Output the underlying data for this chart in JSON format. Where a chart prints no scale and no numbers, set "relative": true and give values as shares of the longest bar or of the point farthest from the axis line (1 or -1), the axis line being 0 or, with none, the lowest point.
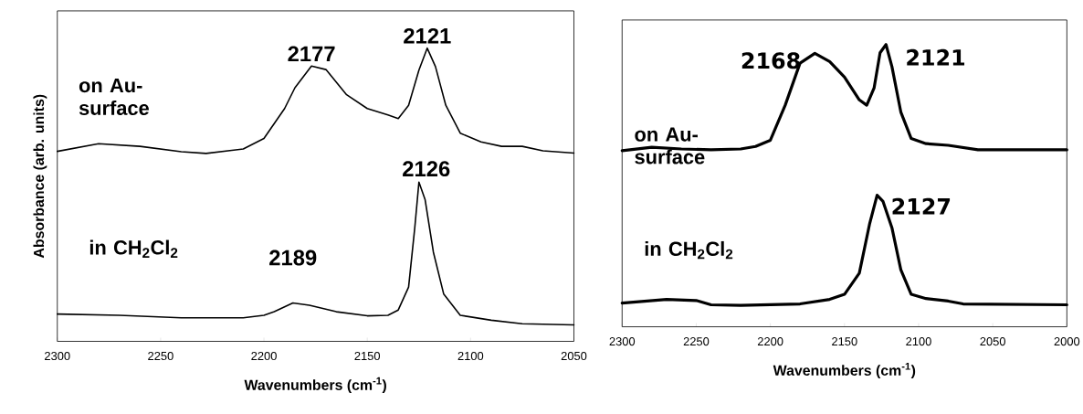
{
  "chart_data": [
    {
      "type": "line",
      "relative": true,
      "xlabel": "Wavenumbers (cm$^{-1}$)",
      "ylabel": "Absorbance (arb. units)",
      "xlim": [
        2300,
        2050
      ],
      "xticks": [
        2300,
        2250,
        2200,
        2150,
        2100,
        2050
      ],
      "series": [
        {
          "name": "on Au-surface",
          "color": "#000000",
          "x": [
            2300,
            2280,
            2260,
            2240,
            2228,
            2210,
            2200,
            2190,
            2185,
            2177,
            2170,
            2160,
            2150,
            2140,
            2135,
            2130,
            2125,
            2121,
            2117,
            2112,
            2105,
            2095,
            2085,
            2075,
            2065,
            2050
          ],
          "values": [
            0.648,
            0.674,
            0.665,
            0.647,
            0.641,
            0.656,
            0.692,
            0.794,
            0.865,
            0.939,
            0.927,
            0.841,
            0.794,
            0.772,
            0.76,
            0.805,
            0.925,
            1.0,
            0.937,
            0.805,
            0.71,
            0.68,
            0.665,
            0.665,
            0.65,
            0.642
          ]
        },
        {
          "name": "in CH$_{2}$Cl$_{2}$",
          "color": "#000000",
          "x": [
            2300,
            2270,
            2240,
            2210,
            2200,
            2195,
            2186,
            2178,
            2165,
            2150,
            2140,
            2135,
            2130,
            2127,
            2125,
            2122,
            2118,
            2113,
            2105,
            2090,
            2075,
            2050
          ],
          "values": [
            0.093,
            0.089,
            0.08,
            0.08,
            0.089,
            0.101,
            0.131,
            0.123,
            0.101,
            0.087,
            0.089,
            0.107,
            0.185,
            0.388,
            0.543,
            0.483,
            0.304,
            0.161,
            0.089,
            0.072,
            0.06,
            0.056
          ]
        }
      ],
      "annotations": [
        {
          "text": "2177",
          "x": 2177,
          "y": 0.939
        },
        {
          "text": "2121",
          "x": 2121,
          "y": 1.0
        },
        {
          "text": "2126",
          "x": 2125,
          "y": 0.543
        },
        {
          "text": "2189",
          "x": 2186,
          "y": 0.131
        }
      ]
    },
    {
      "type": "line",
      "relative": true,
      "xlabel": "Wavenumbers (cm$^{-1}$)",
      "xlim": [
        2300,
        2000
      ],
      "xticks": [
        2300,
        2250,
        2200,
        2150,
        2100,
        2050,
        2000
      ],
      "series": [
        {
          "name": "on Au-surface",
          "color": "#000000",
          "x": [
            2300,
            2280,
            2260,
            2240,
            2220,
            2210,
            2200,
            2190,
            2180,
            2170,
            2160,
            2150,
            2140,
            2135,
            2130,
            2126,
            2122,
            2118,
            2112,
            2105,
            2095,
            2080,
            2060,
            2000
          ],
          "values": [
            0.624,
            0.636,
            0.63,
            0.627,
            0.63,
            0.639,
            0.661,
            0.785,
            0.934,
            0.969,
            0.94,
            0.885,
            0.804,
            0.785,
            0.847,
            0.971,
            1.0,
            0.922,
            0.761,
            0.667,
            0.649,
            0.643,
            0.627,
            0.627
          ]
        },
        {
          "name": "in CH$_{2}$Cl$_{2}$",
          "color": "#000000",
          "x": [
            2300,
            2270,
            2250,
            2240,
            2220,
            2180,
            2160,
            2150,
            2140,
            2133,
            2128,
            2124,
            2118,
            2112,
            2105,
            2095,
            2080,
            2070,
            2000
          ],
          "values": [
            0.084,
            0.097,
            0.093,
            0.078,
            0.076,
            0.081,
            0.097,
            0.115,
            0.19,
            0.366,
            0.466,
            0.444,
            0.351,
            0.202,
            0.115,
            0.1,
            0.091,
            0.081,
            0.078
          ]
        }
      ],
      "annotations": [
        {
          "text": "2168",
          "x": 2170,
          "y": 0.969
        },
        {
          "text": "2121",
          "x": 2122,
          "y": 1.0
        },
        {
          "text": "2127",
          "x": 2128,
          "y": 0.466
        }
      ]
    }
  ]
}
